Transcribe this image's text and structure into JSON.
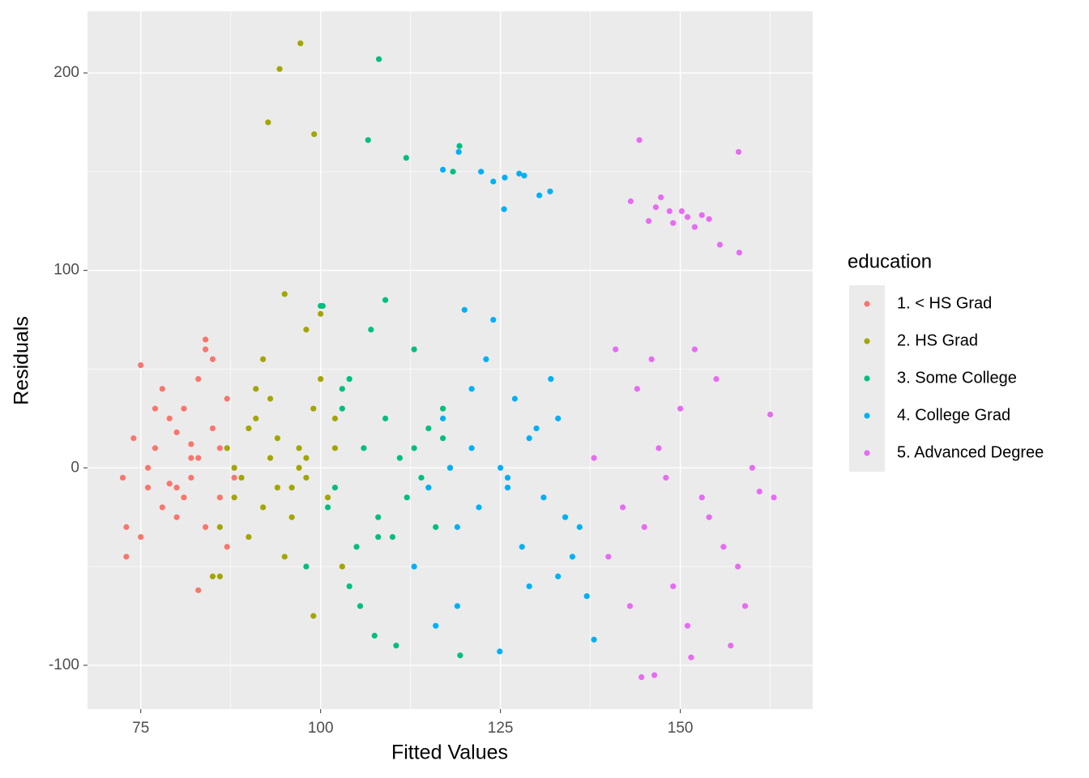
{
  "chart_data": {
    "type": "scatter",
    "x_label": "Fitted Values",
    "y_label": "Residuals",
    "legend_title": "education",
    "legend": "right",
    "grid": true,
    "xlim": [
      67.6,
      168.4
    ],
    "ylim": [
      -122.2,
      231.2
    ],
    "xticks": [
      75,
      100,
      125,
      150
    ],
    "yticks": [
      -100,
      0,
      100,
      200
    ],
    "xminor": [
      87.5,
      112.5,
      137.5,
      162.5
    ],
    "yminor": [
      -50,
      50,
      150
    ],
    "series": [
      {
        "name": "1. < HS Grad",
        "color": "#F8766D",
        "x": [
          72.5,
          73,
          75,
          75,
          76,
          77,
          78,
          79,
          80,
          81,
          82,
          83,
          83,
          84,
          85,
          86,
          87,
          88,
          74,
          76,
          78,
          80,
          82,
          84,
          86,
          79,
          81,
          77,
          83,
          85,
          73,
          80,
          87,
          84,
          82
        ],
        "values": [
          -5,
          -45,
          52,
          -35,
          0,
          10,
          -20,
          25,
          -10,
          30,
          5,
          45,
          -62,
          60,
          20,
          -15,
          35,
          -5,
          15,
          -10,
          40,
          -25,
          12,
          -30,
          10,
          -8,
          -15,
          30,
          5,
          55,
          -30,
          18,
          -40,
          65,
          -5
        ]
      },
      {
        "name": "2. HS Grad",
        "color": "#A3A500",
        "x": [
          94.3,
          97.2,
          92.7,
          99.1,
          85,
          86,
          87,
          88,
          89,
          90,
          91,
          92,
          93,
          94,
          95,
          96,
          97,
          98,
          99,
          100,
          101,
          102,
          103,
          95,
          97,
          99,
          90,
          93,
          96,
          98,
          88,
          91,
          94,
          100,
          102,
          86,
          92,
          98
        ],
        "values": [
          202,
          215,
          175,
          169,
          -55,
          -30,
          10,
          -15,
          -5,
          20,
          40,
          -20,
          5,
          15,
          88,
          -10,
          0,
          70,
          30,
          78,
          -15,
          25,
          -50,
          -45,
          10,
          -75,
          -35,
          35,
          -25,
          -5,
          0,
          25,
          -10,
          45,
          10,
          -55,
          55,
          5
        ]
      },
      {
        "name": "3. Some College",
        "color": "#00BF7D",
        "x": [
          108.1,
          106.6,
          111.9,
          119.3,
          118.4,
          98,
          100,
          101,
          102,
          103,
          104,
          105,
          106,
          107,
          108,
          109,
          110,
          111,
          112,
          113,
          114,
          115,
          116,
          117,
          118,
          119.4,
          100.3,
          104,
          107.5,
          109,
          110.5,
          113,
          105.5,
          103,
          115,
          108,
          117
        ],
        "values": [
          207,
          166,
          157,
          163,
          150,
          -50,
          82,
          -20,
          -10,
          30,
          45,
          -40,
          10,
          70,
          -25,
          85,
          -35,
          5,
          -15,
          60,
          -5,
          20,
          -30,
          15,
          0,
          -95,
          82,
          -60,
          -85,
          25,
          -90,
          10,
          -70,
          40,
          -10,
          -35,
          30
        ]
      },
      {
        "name": "4. College Grad",
        "color": "#00B0F6",
        "x": [
          117,
          119.2,
          122.3,
          124,
          125.6,
          125.5,
          127.6,
          130.4,
          131.9,
          128.3,
          113,
          115,
          117,
          118,
          119,
          120,
          121,
          122,
          123,
          124,
          125,
          126,
          127,
          128,
          129,
          130,
          131,
          132,
          133,
          134,
          135,
          136,
          137,
          138,
          119,
          124.9,
          121,
          126,
          116,
          129,
          133
        ],
        "values": [
          151,
          160,
          150,
          145,
          147,
          131,
          149,
          138,
          140,
          148,
          -50,
          -10,
          25,
          0,
          -30,
          80,
          10,
          -20,
          55,
          75,
          0,
          -5,
          35,
          -40,
          -60,
          20,
          -15,
          45,
          -55,
          -25,
          -45,
          -30,
          -65,
          -87,
          -70,
          -93,
          40,
          -10,
          -80,
          15,
          25
        ]
      },
      {
        "name": "5. Advanced Degree",
        "color": "#E76BF3",
        "x": [
          144.3,
          158.1,
          143.1,
          145.6,
          146.6,
          147.3,
          148.5,
          149,
          150.2,
          151,
          152,
          153,
          154,
          155.5,
          158.2,
          138,
          140,
          141,
          142,
          143,
          144,
          145,
          146,
          147,
          148,
          149,
          150,
          151,
          152,
          153,
          154,
          155,
          156,
          157,
          158,
          159,
          160,
          161,
          162.5,
          163,
          144.6,
          146.4,
          151.5
        ],
        "values": [
          166,
          160,
          135,
          125,
          132,
          137,
          130,
          124,
          130,
          127,
          122,
          128,
          126,
          113,
          109,
          5,
          -45,
          60,
          -20,
          -70,
          40,
          -30,
          55,
          10,
          -5,
          -60,
          30,
          -80,
          60,
          -15,
          -25,
          45,
          -40,
          -90,
          -50,
          -70,
          0,
          -12,
          27,
          -15,
          -106,
          -105,
          -96
        ]
      }
    ]
  }
}
